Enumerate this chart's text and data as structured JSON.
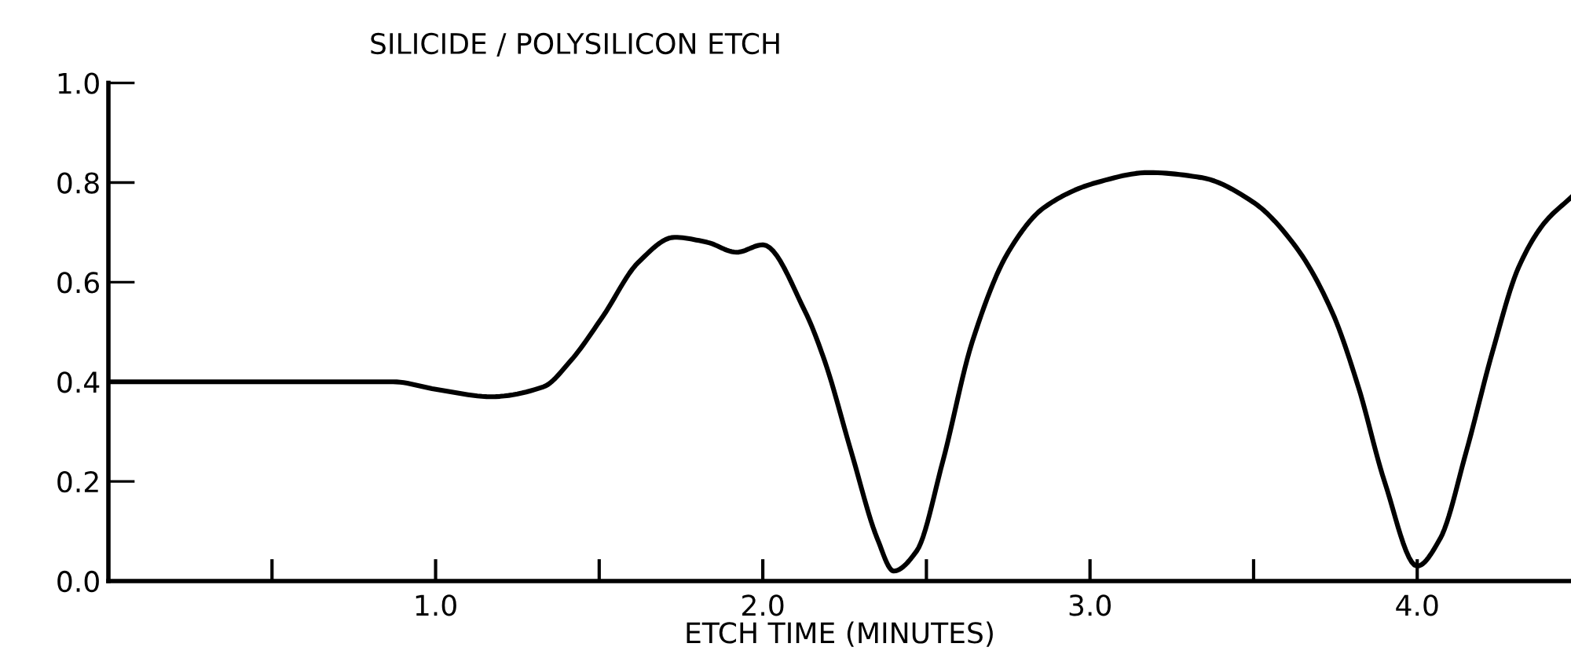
{
  "chart_data": {
    "type": "line",
    "title": "SILICIDE / POLYSILICON ETCH",
    "xlabel": "ETCH TIME (MINUTES)",
    "x": [
      0,
      0.5,
      0.87,
      1.0,
      1.17,
      1.33,
      1.41,
      1.51,
      1.62,
      1.73,
      1.83,
      1.92,
      2.0,
      2.13,
      2.19,
      2.27,
      2.35,
      2.4,
      2.47,
      2.55,
      2.64,
      2.75,
      2.86,
      3.02,
      3.18,
      3.34,
      3.5,
      3.63,
      3.74,
      3.82,
      3.9,
      4.0,
      4.07,
      4.15,
      4.23,
      4.31,
      4.39,
      4.47
    ],
    "series": [
      {
        "color": "#000000",
        "values": [
          0.4,
          0.4,
          0.4,
          0.385,
          0.37,
          0.39,
          0.44,
          0.53,
          0.64,
          0.69,
          0.68,
          0.66,
          0.675,
          0.54,
          0.44,
          0.26,
          0.085,
          0.02,
          0.06,
          0.24,
          0.48,
          0.66,
          0.75,
          0.8,
          0.82,
          0.81,
          0.76,
          0.67,
          0.54,
          0.39,
          0.2,
          0.03,
          0.085,
          0.26,
          0.46,
          0.63,
          0.72,
          0.77
        ]
      }
    ],
    "xlim": [
      0,
      4.47
    ],
    "ylim": [
      0,
      1.0
    ],
    "xticks": [
      {
        "value": 0.5,
        "label": null
      },
      {
        "value": 1.0,
        "label": "1.0"
      },
      {
        "value": 1.5,
        "label": null
      },
      {
        "value": 2.0,
        "label": "2.0"
      },
      {
        "value": 2.5,
        "label": null
      },
      {
        "value": 3.0,
        "label": "3.0"
      },
      {
        "value": 3.5,
        "label": null
      },
      {
        "value": 4.0,
        "label": "4.0"
      }
    ],
    "yticks": [
      {
        "value": 0,
        "label": "0.0"
      },
      {
        "value": 0.2,
        "label": "0.2"
      },
      {
        "value": 0.4,
        "label": "0.4"
      },
      {
        "value": 0.6,
        "label": "0.6"
      },
      {
        "value": 0.8,
        "label": "0.8"
      },
      {
        "value": 1.0,
        "label": "1.0"
      }
    ],
    "grid": false,
    "marker": "none",
    "line_style": "solid"
  }
}
